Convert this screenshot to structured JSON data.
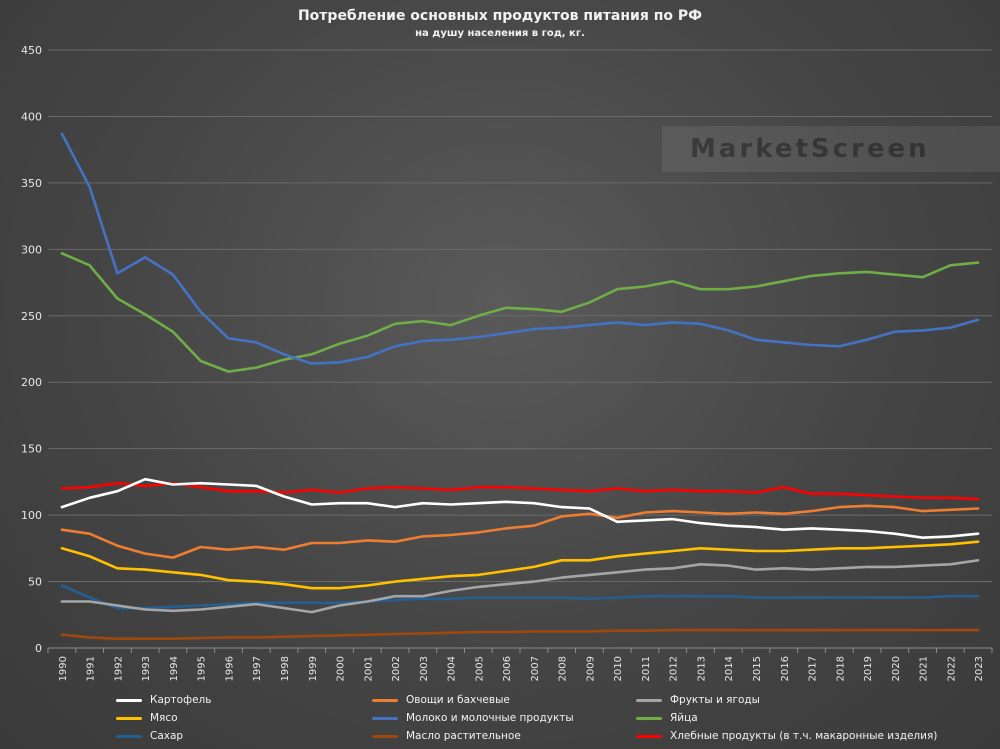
{
  "chart_data": {
    "type": "line",
    "title": "Потребление основных продуктов питания по РФ",
    "subtitle": "на душу населения в год, кг.",
    "xlabel": "",
    "ylabel": "",
    "ylim": [
      0,
      450
    ],
    "y_ticks": [
      "0",
      "50",
      "100",
      "150",
      "200",
      "250",
      "300",
      "350",
      "400",
      "450"
    ],
    "grid": true,
    "legend_position": "bottom",
    "x": [
      "1990",
      "1991",
      "1992",
      "1993",
      "1994",
      "1995",
      "1996",
      "1997",
      "1998",
      "1999",
      "2000",
      "2001",
      "2002",
      "2003",
      "2004",
      "2005",
      "2006",
      "2007",
      "2008",
      "2009",
      "2010",
      "2011",
      "2012",
      "2013",
      "2014",
      "2015",
      "2016",
      "2017",
      "2018",
      "2019",
      "2020",
      "2021",
      "2022",
      "2023"
    ],
    "series": [
      {
        "name": "Картофель",
        "color": "#ffffff",
        "values": [
          106,
          113,
          118,
          127,
          123,
          124,
          123,
          122,
          114,
          108,
          109,
          109,
          106,
          109,
          108,
          109,
          110,
          109,
          106,
          105,
          95,
          96,
          97,
          94,
          92,
          91,
          89,
          90,
          89,
          88,
          86,
          83,
          84,
          86
        ]
      },
      {
        "name": "Овощи и бахчевые",
        "color": "#ed7d31",
        "values": [
          89,
          86,
          77,
          71,
          68,
          76,
          74,
          76,
          74,
          79,
          79,
          81,
          80,
          84,
          85,
          87,
          90,
          92,
          99,
          101,
          98,
          102,
          103,
          102,
          101,
          102,
          101,
          103,
          106,
          107,
          106,
          103,
          104,
          105
        ]
      },
      {
        "name": "Фрукты и ягоды",
        "color": "#a5a5a5",
        "values": [
          35,
          35,
          32,
          29,
          28,
          29,
          31,
          33,
          30,
          27,
          32,
          35,
          39,
          39,
          43,
          46,
          48,
          50,
          53,
          55,
          57,
          59,
          60,
          63,
          62,
          59,
          60,
          59,
          60,
          61,
          61,
          62,
          63,
          66
        ]
      },
      {
        "name": "Мясо",
        "color": "#ffc000",
        "values": [
          75,
          69,
          60,
          59,
          57,
          55,
          51,
          50,
          48,
          45,
          45,
          47,
          50,
          52,
          54,
          55,
          58,
          61,
          66,
          66,
          69,
          71,
          73,
          75,
          74,
          73,
          73,
          74,
          75,
          75,
          76,
          77,
          78,
          80
        ]
      },
      {
        "name": "Молоко и молочные продукты",
        "color": "#4472c4",
        "values": [
          387,
          347,
          282,
          294,
          281,
          253,
          233,
          230,
          221,
          214,
          215,
          219,
          227,
          231,
          232,
          234,
          237,
          240,
          241,
          243,
          245,
          243,
          245,
          244,
          239,
          232,
          230,
          228,
          227,
          232,
          238,
          239,
          241,
          247
        ]
      },
      {
        "name": "Яйца",
        "color": "#70ad47",
        "values": [
          297,
          288,
          263,
          251,
          238,
          216,
          208,
          211,
          217,
          221,
          229,
          235,
          244,
          246,
          243,
          250,
          256,
          255,
          253,
          260,
          270,
          272,
          276,
          270,
          270,
          272,
          276,
          280,
          282,
          283,
          281,
          279,
          288,
          290
        ]
      },
      {
        "name": "Сахар",
        "color": "#255e91",
        "values": [
          47,
          38,
          30,
          30,
          31,
          32,
          33,
          34,
          34,
          34,
          34,
          35,
          36,
          37,
          37,
          38,
          38,
          38,
          38,
          37,
          38,
          39,
          39,
          39,
          39,
          38,
          38,
          38,
          38,
          38,
          38,
          38,
          39,
          39
        ]
      },
      {
        "name": "Масло растительное",
        "color": "#9e480e",
        "values": [
          10,
          8,
          7,
          7,
          7,
          7.5,
          8,
          8,
          8.5,
          9,
          9.5,
          10,
          10.5,
          11,
          11.5,
          12,
          12,
          12.5,
          12.5,
          12.5,
          13,
          13,
          13.5,
          13.5,
          13.5,
          13.5,
          13.5,
          13.5,
          13.5,
          13.5,
          13.5,
          13.5,
          13.5,
          13.5
        ]
      },
      {
        "name": "Хлебные продукты (в т.ч. макаронные изделия)",
        "color": "#ff0000",
        "values": [
          120,
          121,
          124,
          122,
          124,
          121,
          118,
          118,
          117,
          119,
          117,
          120,
          121,
          120,
          119,
          121,
          121,
          120,
          119,
          118,
          120,
          118,
          119,
          118,
          118,
          117,
          121,
          116,
          116,
          115,
          114,
          113,
          113,
          112
        ]
      }
    ]
  },
  "watermark": "MarketScreen"
}
